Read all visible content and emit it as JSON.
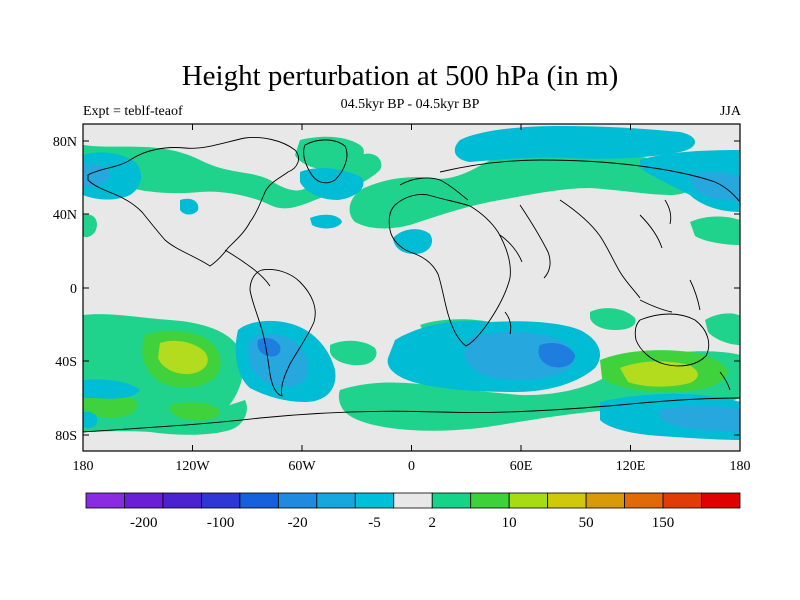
{
  "map": {
    "title": "Height perturbation at 500 hPa (in m)",
    "subtitle": "04.5kyr BP - 04.5kyr BP",
    "left_label": "Expt = teblf-teaof",
    "right_label": "JJA",
    "lat_ticks": [
      "80N",
      "40N",
      "0",
      "40S",
      "80S"
    ],
    "lon_ticks": [
      "180",
      "120W",
      "60W",
      "0",
      "60E",
      "120E",
      "180"
    ],
    "colors": {
      "background_land_sea": "#e8e8e8",
      "coast": "#000000",
      "neg_weak": "#00bcd4",
      "neg_mid": "#26a8df",
      "neg_strong": "#1f7de0",
      "pos_weak": "#1fd38c",
      "pos_mid": "#3fd23c",
      "pos_strong": "#b4dc1e"
    }
  },
  "colorbar": {
    "colors": [
      "#8a2be2",
      "#6a1fd6",
      "#4b22d0",
      "#2e36d6",
      "#1560dc",
      "#1f8ae0",
      "#16a7dd",
      "#00bfd8",
      "#e8e8e8",
      "#15d48a",
      "#3dd23a",
      "#a6dc12",
      "#d0c80c",
      "#d99a0a",
      "#e06a08",
      "#e03c06",
      "#e00000"
    ],
    "labels": [
      "-200",
      "-100",
      "-20",
      "-5",
      "2",
      "10",
      "50",
      "150"
    ]
  }
}
